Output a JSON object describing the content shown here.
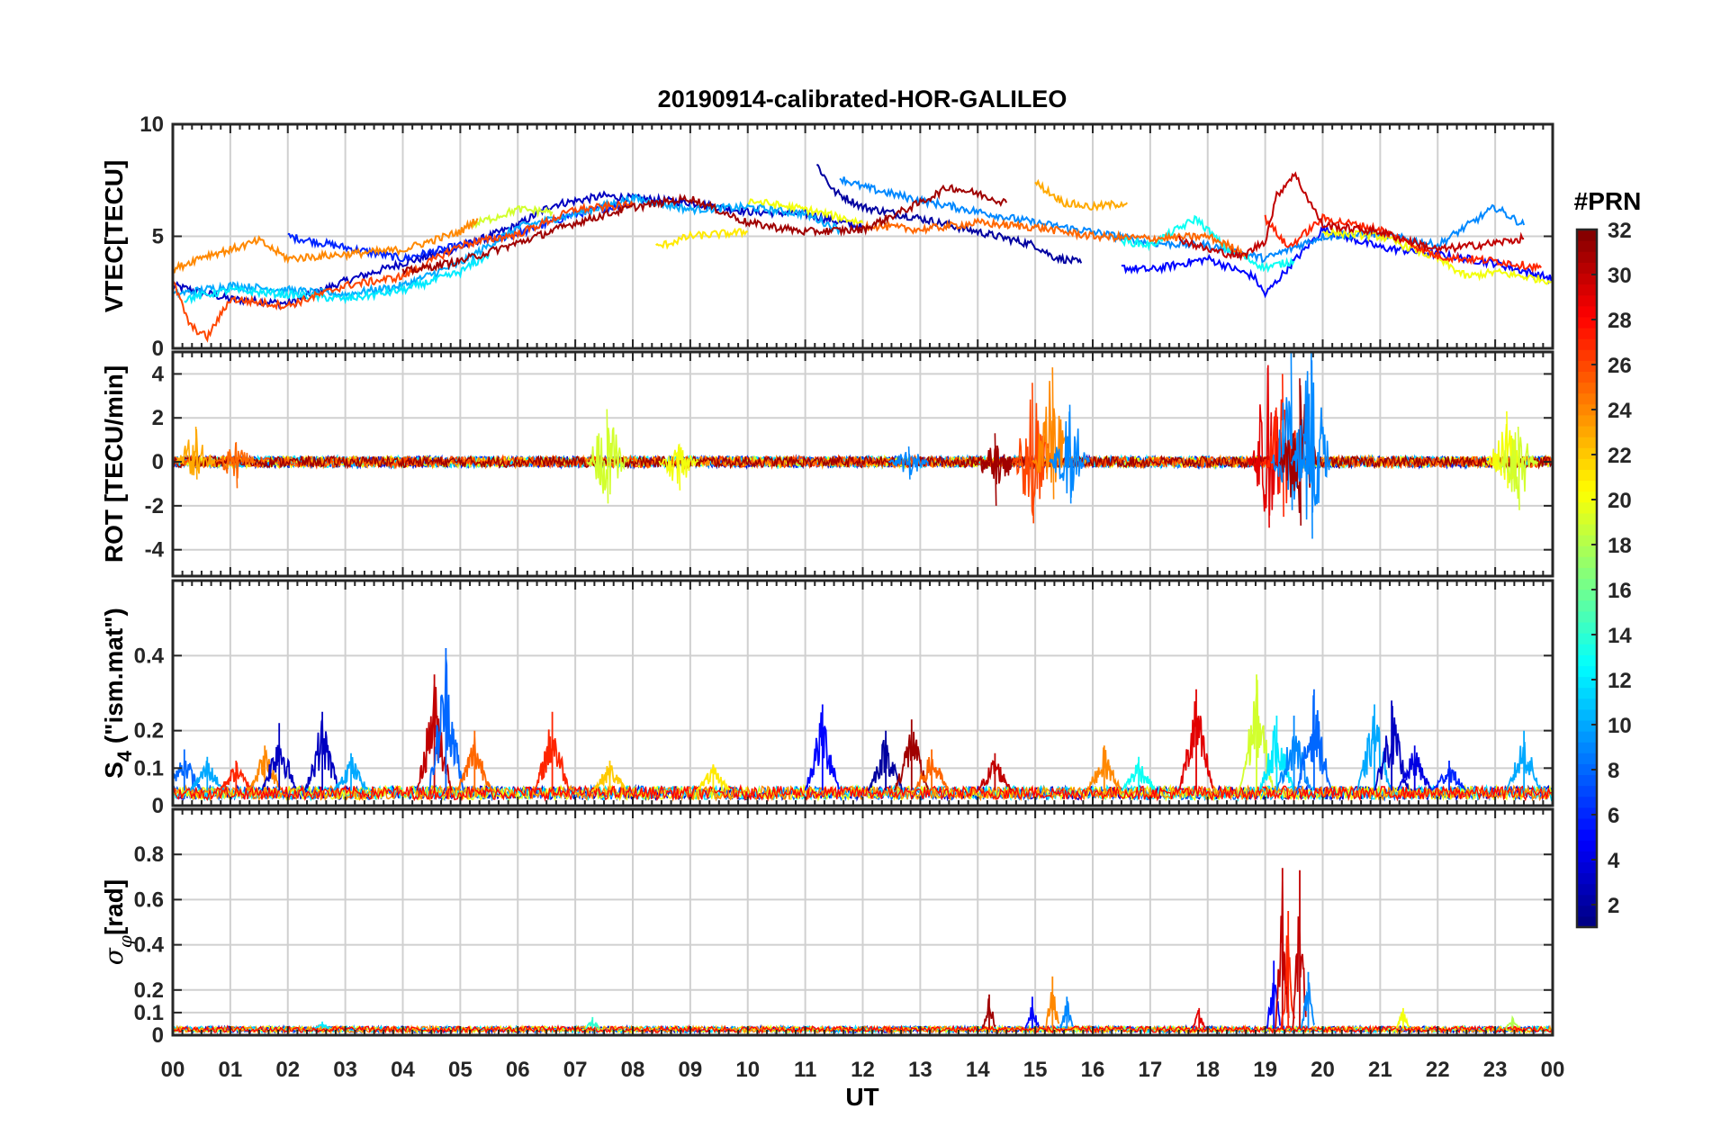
{
  "title": "20190914-calibrated-HOR-GALILEO",
  "chart_data": [
    {
      "type": "line",
      "panel": "vtec",
      "ylabel": "VTEC[TECU]",
      "ylim": [
        0,
        10
      ],
      "yticks": [
        "0",
        "5",
        "10"
      ],
      "yticks_values": [
        0,
        5,
        10
      ],
      "grid": true,
      "series": [
        {
          "prn": 3,
          "values": [
            [
              0.0,
              2.8
            ],
            [
              1.0,
              2.2
            ],
            [
              2.0,
              2.0
            ],
            [
              3.0,
              3.0
            ],
            [
              4.0,
              3.8
            ],
            [
              5.0,
              4.5
            ],
            [
              6.0,
              5.5
            ],
            [
              6.6,
              6.4
            ],
            [
              7.5,
              6.8
            ],
            [
              9.0,
              6.5
            ],
            [
              10.0,
              6.1
            ],
            [
              11.0,
              6.0
            ],
            [
              12.0,
              5.4
            ]
          ]
        },
        {
          "prn": 6,
          "values": [
            [
              2.0,
              5.0
            ],
            [
              3.0,
              4.5
            ],
            [
              4.0,
              4.0
            ],
            [
              5.0,
              4.6
            ],
            [
              6.0,
              5.1
            ],
            [
              7.0,
              6.0
            ],
            [
              8.0,
              6.5
            ]
          ]
        },
        {
          "prn": 2,
          "values": [
            [
              11.2,
              8.2
            ],
            [
              11.5,
              7.0
            ],
            [
              12.0,
              6.3
            ],
            [
              13.0,
              5.8
            ],
            [
              14.0,
              5.2
            ],
            [
              15.0,
              4.6
            ],
            [
              15.3,
              4.1
            ],
            [
              15.8,
              3.8
            ]
          ]
        },
        {
          "prn": 5,
          "values": [
            [
              16.5,
              3.6
            ],
            [
              17.0,
              3.5
            ],
            [
              18.0,
              4.0
            ],
            [
              18.8,
              3.2
            ],
            [
              19.0,
              2.4
            ],
            [
              19.4,
              3.6
            ],
            [
              20.0,
              5.3
            ],
            [
              21.0,
              4.5
            ],
            [
              22.0,
              4.2
            ],
            [
              23.0,
              3.8
            ],
            [
              24.0,
              3.1
            ]
          ]
        },
        {
          "prn": 10,
          "values": [
            [
              0.0,
              2.4
            ],
            [
              1.0,
              2.8
            ],
            [
              2.0,
              2.6
            ],
            [
              3.0,
              2.4
            ],
            [
              4.0,
              2.8
            ],
            [
              5.0,
              3.8
            ],
            [
              6.0,
              5.4
            ],
            [
              7.0,
              6.0
            ],
            [
              8.0,
              6.7
            ],
            [
              9.0,
              6.2
            ],
            [
              10.0,
              6.3
            ],
            [
              11.0,
              6.0
            ],
            [
              11.6,
              5.3
            ]
          ]
        },
        {
          "prn": 9,
          "values": [
            [
              11.6,
              7.6
            ],
            [
              12.0,
              7.2
            ],
            [
              13.0,
              6.6
            ],
            [
              14.0,
              6.1
            ],
            [
              15.0,
              5.6
            ],
            [
              16.0,
              5.2
            ],
            [
              17.0,
              4.7
            ],
            [
              18.0,
              4.6
            ],
            [
              19.0,
              4.0
            ],
            [
              20.0,
              5.0
            ],
            [
              21.0,
              5.1
            ],
            [
              22.0,
              4.6
            ],
            [
              23.0,
              6.3
            ],
            [
              23.5,
              5.5
            ]
          ]
        },
        {
          "prn": 13,
          "values": [
            [
              16.5,
              4.8
            ],
            [
              17.0,
              4.6
            ],
            [
              17.8,
              5.8
            ],
            [
              18.3,
              4.5
            ],
            [
              19.0,
              3.6
            ],
            [
              19.5,
              3.9
            ]
          ]
        },
        {
          "prn": 12,
          "values": [
            [
              0.2,
              2.2
            ],
            [
              1.0,
              2.6
            ],
            [
              2.0,
              2.4
            ],
            [
              3.0,
              2.2
            ],
            [
              4.0,
              2.6
            ],
            [
              5.0,
              3.4
            ],
            [
              5.5,
              4.2
            ]
          ]
        },
        {
          "prn": 19,
          "values": [
            [
              5.2,
              5.5
            ],
            [
              6.0,
              6.2
            ],
            [
              6.6,
              6.1
            ]
          ]
        },
        {
          "prn": 21,
          "values": [
            [
              8.4,
              4.5
            ],
            [
              9.0,
              5.0
            ],
            [
              10.0,
              5.2
            ]
          ]
        },
        {
          "prn": 20,
          "values": [
            [
              10.0,
              6.6
            ],
            [
              11.0,
              6.2
            ],
            [
              12.0,
              5.6
            ]
          ]
        },
        {
          "prn": 20,
          "values": [
            [
              20.0,
              5.2
            ],
            [
              21.0,
              5.0
            ],
            [
              22.0,
              4.0
            ],
            [
              22.5,
              3.2
            ],
            [
              23.0,
              3.4
            ],
            [
              24.0,
              3.0
            ]
          ]
        },
        {
          "prn": 24,
          "values": [
            [
              0.0,
              3.5
            ],
            [
              0.5,
              4.1
            ],
            [
              1.0,
              4.4
            ],
            [
              1.5,
              4.8
            ],
            [
              2.0,
              4.0
            ],
            [
              3.0,
              4.2
            ],
            [
              4.0,
              4.4
            ],
            [
              5.0,
              5.2
            ],
            [
              5.3,
              5.8
            ]
          ]
        },
        {
          "prn": 23,
          "values": [
            [
              15.0,
              7.4
            ],
            [
              15.5,
              6.5
            ],
            [
              16.0,
              6.3
            ],
            [
              16.6,
              6.5
            ]
          ]
        },
        {
          "prn": 26,
          "values": [
            [
              0.0,
              3.0
            ],
            [
              0.3,
              1.0
            ],
            [
              0.6,
              0.5
            ],
            [
              1.0,
              2.2
            ],
            [
              2.0,
              1.9
            ],
            [
              3.0,
              2.8
            ],
            [
              4.0,
              3.2
            ],
            [
              5.0,
              4.6
            ],
            [
              6.0,
              5.1
            ],
            [
              7.0,
              6.2
            ],
            [
              8.0,
              6.4
            ]
          ]
        },
        {
          "prn": 25,
          "values": [
            [
              12.0,
              5.5
            ],
            [
              13.0,
              5.3
            ],
            [
              14.0,
              5.6
            ],
            [
              15.0,
              5.4
            ],
            [
              16.0,
              5.0
            ],
            [
              17.0,
              4.9
            ],
            [
              18.0,
              5.0
            ],
            [
              18.7,
              4.2
            ]
          ]
        },
        {
          "prn": 27,
          "values": [
            [
              19.0,
              5.8
            ],
            [
              19.4,
              4.5
            ],
            [
              20.0,
              5.8
            ],
            [
              21.0,
              5.3
            ],
            [
              22.0,
              4.1
            ],
            [
              23.0,
              3.9
            ],
            [
              23.8,
              3.6
            ]
          ]
        },
        {
          "prn": 31,
          "values": [
            [
              4.0,
              3.4
            ],
            [
              5.0,
              3.9
            ],
            [
              6.0,
              4.7
            ],
            [
              7.0,
              5.6
            ],
            [
              8.0,
              6.3
            ],
            [
              9.0,
              6.7
            ],
            [
              10.0,
              5.6
            ],
            [
              11.0,
              5.2
            ],
            [
              12.0,
              5.3
            ],
            [
              13.0,
              6.5
            ],
            [
              13.5,
              7.2
            ],
            [
              14.0,
              6.9
            ],
            [
              14.5,
              6.5
            ]
          ]
        },
        {
          "prn": 30,
          "values": [
            [
              17.5,
              4.9
            ],
            [
              18.0,
              4.4
            ],
            [
              18.6,
              4.1
            ],
            [
              19.0,
              4.8
            ],
            [
              19.2,
              6.8
            ],
            [
              19.5,
              7.8
            ],
            [
              19.7,
              6.9
            ],
            [
              20.0,
              5.5
            ],
            [
              21.0,
              5.2
            ],
            [
              22.0,
              4.4
            ],
            [
              23.0,
              4.7
            ],
            [
              23.5,
              4.9
            ]
          ]
        }
      ]
    },
    {
      "type": "line",
      "panel": "rot",
      "ylabel": "ROT [TECU/min]",
      "ylim": [
        -5.2,
        5
      ],
      "yticks": [
        "-4",
        "-2",
        "0",
        "2",
        "4"
      ],
      "yticks_values": [
        -4,
        -2,
        0,
        2,
        4
      ],
      "grid": true,
      "events": [
        {
          "x": 0.4,
          "ymax": 1.6,
          "ymin": -0.8,
          "prn": 23
        },
        {
          "x": 1.1,
          "ymax": 0.9,
          "ymin": -1.2,
          "prn": 25
        },
        {
          "x": 7.55,
          "ymax": 2.4,
          "ymin": -1.9,
          "prn": 19
        },
        {
          "x": 8.8,
          "ymax": 0.8,
          "ymin": -1.3,
          "prn": 20
        },
        {
          "x": 12.8,
          "ymax": 0.7,
          "ymin": -0.8,
          "prn": 9
        },
        {
          "x": 14.3,
          "ymax": 1.3,
          "ymin": -2.0,
          "prn": 31
        },
        {
          "x": 14.95,
          "ymax": 3.6,
          "ymin": -2.8,
          "prn": 26
        },
        {
          "x": 15.3,
          "ymax": 4.3,
          "ymin": -1.7,
          "prn": 24
        },
        {
          "x": 15.6,
          "ymax": 2.6,
          "ymin": -1.9,
          "prn": 9
        },
        {
          "x": 19.05,
          "ymax": 4.4,
          "ymin": -3.0,
          "prn": 29
        },
        {
          "x": 19.3,
          "ymax": 4.0,
          "ymin": -2.5,
          "prn": 27
        },
        {
          "x": 19.45,
          "ymax": 5.0,
          "ymin": -2.2,
          "prn": 9
        },
        {
          "x": 19.6,
          "ymax": 3.8,
          "ymin": -2.9,
          "prn": 31
        },
        {
          "x": 19.8,
          "ymax": 5.2,
          "ymin": -3.5,
          "prn": 9
        },
        {
          "x": 23.2,
          "ymax": 2.3,
          "ymin": -1.2,
          "prn": 20
        },
        {
          "x": 23.4,
          "ymax": 1.6,
          "ymin": -2.2,
          "prn": 19
        }
      ]
    },
    {
      "type": "line",
      "panel": "s4",
      "ylabel": "S4 (\"ism.mat\")",
      "ylim": [
        0,
        0.6
      ],
      "yticks": [
        "0",
        "0.1",
        "0.2",
        "0.4"
      ],
      "yticks_values": [
        0,
        0.1,
        0.2,
        0.4
      ],
      "grid": true,
      "events": [
        {
          "x": 0.2,
          "y": 0.15,
          "prn": 8
        },
        {
          "x": 0.6,
          "y": 0.13,
          "prn": 10
        },
        {
          "x": 1.1,
          "y": 0.12,
          "prn": 27
        },
        {
          "x": 1.6,
          "y": 0.16,
          "prn": 24
        },
        {
          "x": 1.85,
          "y": 0.22,
          "prn": 3
        },
        {
          "x": 2.6,
          "y": 0.25,
          "prn": 3
        },
        {
          "x": 3.1,
          "y": 0.14,
          "prn": 10
        },
        {
          "x": 4.55,
          "y": 0.35,
          "prn": 30
        },
        {
          "x": 4.75,
          "y": 0.42,
          "prn": 8
        },
        {
          "x": 5.25,
          "y": 0.2,
          "prn": 25
        },
        {
          "x": 6.6,
          "y": 0.25,
          "prn": 27
        },
        {
          "x": 7.6,
          "y": 0.12,
          "prn": 22
        },
        {
          "x": 9.4,
          "y": 0.11,
          "prn": 21
        },
        {
          "x": 11.3,
          "y": 0.27,
          "prn": 5
        },
        {
          "x": 12.4,
          "y": 0.2,
          "prn": 2
        },
        {
          "x": 12.85,
          "y": 0.23,
          "prn": 31
        },
        {
          "x": 13.2,
          "y": 0.15,
          "prn": 25
        },
        {
          "x": 14.3,
          "y": 0.14,
          "prn": 30
        },
        {
          "x": 16.2,
          "y": 0.16,
          "prn": 24
        },
        {
          "x": 16.8,
          "y": 0.13,
          "prn": 13
        },
        {
          "x": 17.8,
          "y": 0.31,
          "prn": 29
        },
        {
          "x": 18.85,
          "y": 0.35,
          "prn": 19
        },
        {
          "x": 19.2,
          "y": 0.24,
          "prn": 12
        },
        {
          "x": 19.5,
          "y": 0.24,
          "prn": 9
        },
        {
          "x": 19.85,
          "y": 0.31,
          "prn": 8
        },
        {
          "x": 20.9,
          "y": 0.27,
          "prn": 10
        },
        {
          "x": 21.2,
          "y": 0.28,
          "prn": 3
        },
        {
          "x": 21.6,
          "y": 0.16,
          "prn": 4
        },
        {
          "x": 22.2,
          "y": 0.12,
          "prn": 6
        },
        {
          "x": 23.5,
          "y": 0.2,
          "prn": 10
        }
      ]
    },
    {
      "type": "line",
      "panel": "sigma_phi",
      "ylabel": "σφ[rad]",
      "ylim": [
        0,
        1
      ],
      "yticks": [
        "0",
        "0.1",
        "0.2",
        "0.4",
        "0.6",
        "0.8"
      ],
      "yticks_values": [
        0,
        0.1,
        0.2,
        0.4,
        0.6,
        0.8
      ],
      "grid": true,
      "events": [
        {
          "x": 2.6,
          "y": 0.06,
          "prn": 12
        },
        {
          "x": 7.3,
          "y": 0.08,
          "prn": 14
        },
        {
          "x": 14.2,
          "y": 0.18,
          "prn": 31
        },
        {
          "x": 14.95,
          "y": 0.17,
          "prn": 5
        },
        {
          "x": 15.3,
          "y": 0.26,
          "prn": 24
        },
        {
          "x": 15.55,
          "y": 0.17,
          "prn": 9
        },
        {
          "x": 17.85,
          "y": 0.12,
          "prn": 29
        },
        {
          "x": 19.15,
          "y": 0.33,
          "prn": 5
        },
        {
          "x": 19.3,
          "y": 0.74,
          "prn": 30
        },
        {
          "x": 19.4,
          "y": 0.55,
          "prn": 27
        },
        {
          "x": 19.6,
          "y": 0.73,
          "prn": 30
        },
        {
          "x": 19.75,
          "y": 0.28,
          "prn": 9
        },
        {
          "x": 21.4,
          "y": 0.12,
          "prn": 20
        },
        {
          "x": 23.3,
          "y": 0.08,
          "prn": 18
        }
      ]
    }
  ],
  "xaxis": {
    "label": "UT",
    "ticks": [
      "00",
      "01",
      "02",
      "03",
      "04",
      "05",
      "06",
      "07",
      "08",
      "09",
      "10",
      "11",
      "12",
      "13",
      "14",
      "15",
      "16",
      "17",
      "18",
      "19",
      "20",
      "21",
      "22",
      "23",
      "00"
    ],
    "range": [
      0,
      24
    ]
  },
  "colorbar": {
    "title": "#PRN",
    "colormap": "jet",
    "range": [
      1,
      32
    ],
    "ticks": [
      "2",
      "4",
      "6",
      "8",
      "10",
      "12",
      "14",
      "16",
      "18",
      "20",
      "22",
      "24",
      "26",
      "28",
      "30",
      "32"
    ],
    "tick_values": [
      2,
      4,
      6,
      8,
      10,
      12,
      14,
      16,
      18,
      20,
      22,
      24,
      26,
      28,
      30,
      32
    ]
  }
}
